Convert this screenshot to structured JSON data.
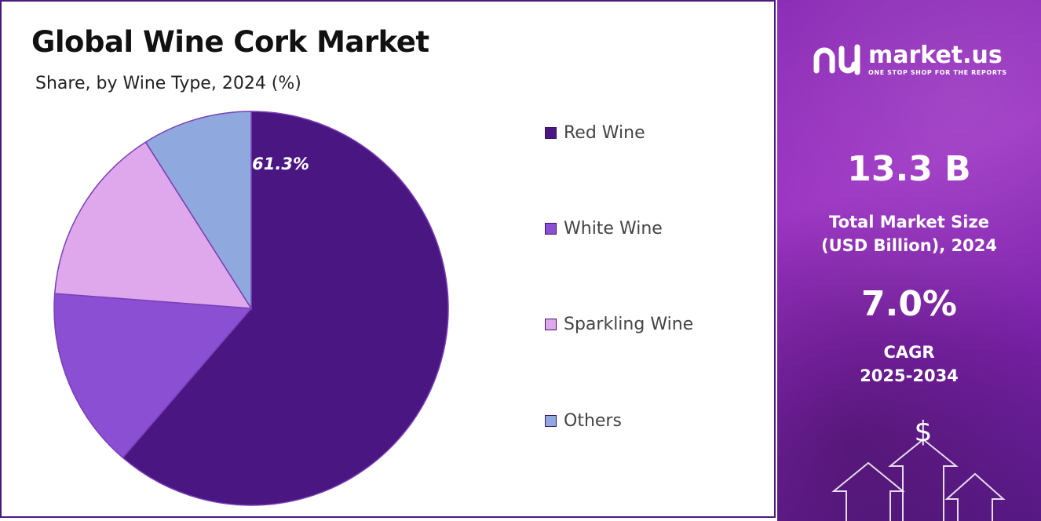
{
  "header": {
    "title": "Global Wine Cork Market",
    "subtitle": "Share, by Wine Type, 2024 (%)"
  },
  "chart_data": {
    "type": "pie",
    "title": "Global Wine Cork Market",
    "subtitle": "Share, by Wine Type, 2024 (%)",
    "categories": [
      "Red Wine",
      "White Wine",
      "Sparkling Wine",
      "Others"
    ],
    "values": [
      61.3,
      14.9,
      14.8,
      9.0
    ],
    "colors": [
      "#4a1782",
      "#8a4fd2",
      "#e0a8ec",
      "#8fa8de"
    ],
    "data_labels": [
      "61.3%",
      "",
      "",
      ""
    ],
    "legend_position": "right"
  },
  "legend": {
    "items": [
      {
        "label": "Red Wine",
        "color": "#4a1782"
      },
      {
        "label": "White Wine",
        "color": "#8a4fd2"
      },
      {
        "label": "Sparkling Wine",
        "color": "#e0a8ec"
      },
      {
        "label": "Others",
        "color": "#8fa8de"
      }
    ]
  },
  "brand": {
    "name": "market.us",
    "tagline": "ONE STOP SHOP FOR THE REPORTS",
    "logo_icon": "market-us-logo-icon"
  },
  "stats": {
    "market_size_value": "13.3 B",
    "market_size_label_1": "Total Market Size",
    "market_size_label_2": "(USD Billion), 2024",
    "cagr_value": "7.0%",
    "cagr_label_1": "CAGR",
    "cagr_label_2": "2025-2034",
    "currency_symbol": "$"
  },
  "colors": {
    "panel_gradient_start": "#8a2bb5",
    "panel_gradient_end": "#5a1a8a",
    "border": "#4b1a7e"
  }
}
